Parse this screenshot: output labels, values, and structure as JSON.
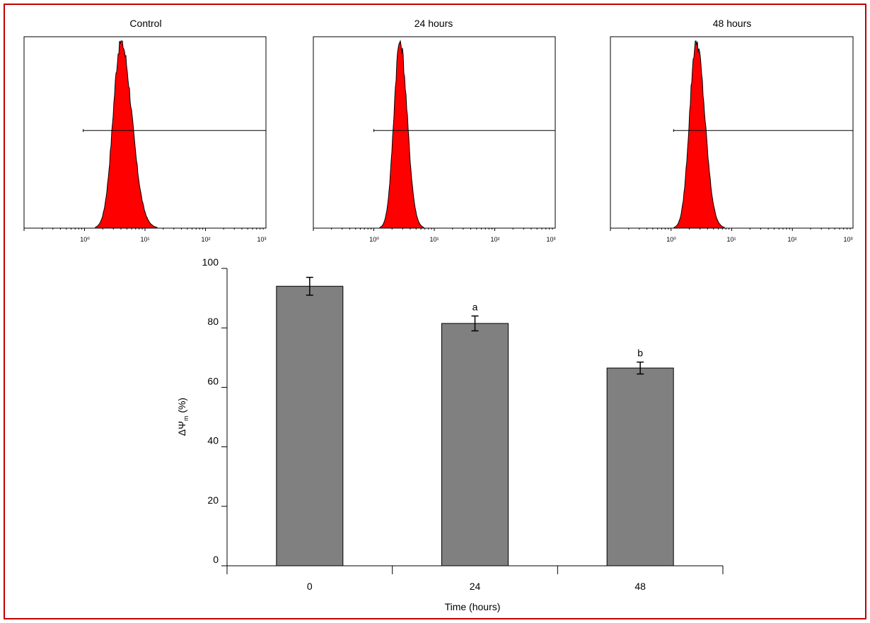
{
  "colors": {
    "frame": "#c00000",
    "histogram_fill": "#ff0000",
    "bar_fill": "#808080"
  },
  "chart_data": [
    {
      "type": "area",
      "title": "Control",
      "x_scale": "log",
      "xlim": [
        0.1,
        1000
      ],
      "x_tick_labels": [
        "10⁰",
        "10¹",
        "10²",
        "10³"
      ],
      "gate": {
        "xmin": 0.95,
        "xmax": 1000
      },
      "peak": {
        "mode": 4.0,
        "log_sd_left": 0.13,
        "log_sd_right": 0.18
      }
    },
    {
      "type": "area",
      "title": "24 hours",
      "x_scale": "log",
      "xlim": [
        0.1,
        1000
      ],
      "x_tick_labels": [
        "10⁰",
        "10¹",
        "10²",
        "10³"
      ],
      "gate": {
        "xmin": 1.0,
        "xmax": 1000
      },
      "peak": {
        "mode": 2.7,
        "log_sd_left": 0.1,
        "log_sd_right": 0.12
      }
    },
    {
      "type": "area",
      "title": "48 hours",
      "x_scale": "log",
      "xlim": [
        0.1,
        1000
      ],
      "x_tick_labels": [
        "10⁰",
        "10¹",
        "10²",
        "10³"
      ],
      "gate": {
        "xmin": 1.1,
        "xmax": 1000
      },
      "peak": {
        "mode": 2.6,
        "log_sd_left": 0.11,
        "log_sd_right": 0.14
      }
    },
    {
      "type": "bar",
      "categories": [
        "0",
        "24",
        "48"
      ],
      "values": [
        94,
        81.5,
        66.5
      ],
      "errors": [
        3,
        2.5,
        2
      ],
      "annotations": [
        "",
        "a",
        "b"
      ],
      "xlabel": "Time (hours)",
      "ylabel": "ΔΨ",
      "ylabel_sub": "m",
      "ylabel_suffix": " (%)",
      "ylim": [
        0,
        100
      ],
      "yticks": [
        0,
        20,
        40,
        60,
        80,
        100
      ]
    }
  ]
}
